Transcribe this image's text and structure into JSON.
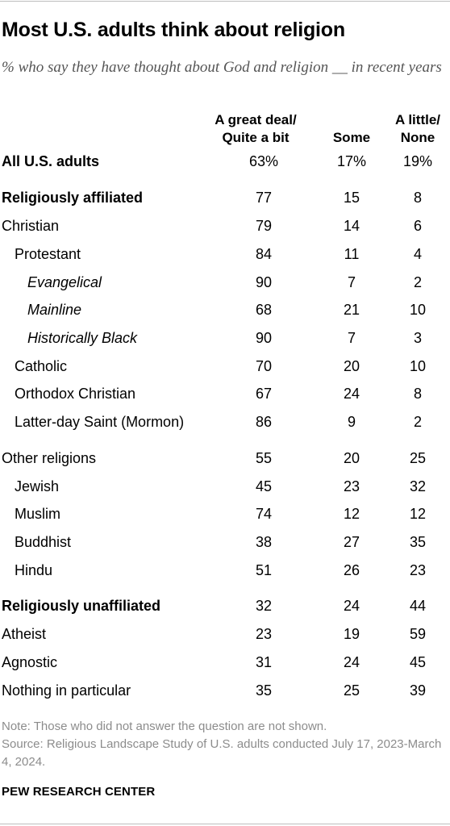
{
  "chart_data": {
    "type": "table",
    "title": "Most U.S. adults think about religion",
    "subtitle": "% who say they have thought about God and religion __ in recent years",
    "columns": [
      {
        "lines": [
          "A great deal/",
          "Quite a bit"
        ]
      },
      {
        "lines": [
          "Some"
        ]
      },
      {
        "lines": [
          "A little/",
          "None"
        ]
      }
    ],
    "rows": [
      {
        "label": "All U.S. adults",
        "values": [
          "63%",
          "17%",
          "19%"
        ],
        "bold": true,
        "italic": false,
        "indent": 0
      },
      {
        "label": "Religiously affiliated",
        "values": [
          "77",
          "15",
          "8"
        ],
        "bold": true,
        "italic": false,
        "indent": 0
      },
      {
        "label": "Christian",
        "values": [
          "79",
          "14",
          "6"
        ],
        "bold": false,
        "italic": false,
        "indent": 0
      },
      {
        "label": "Protestant",
        "values": [
          "84",
          "11",
          "4"
        ],
        "bold": false,
        "italic": false,
        "indent": 1
      },
      {
        "label": "Evangelical",
        "values": [
          "90",
          "7",
          "2"
        ],
        "bold": false,
        "italic": true,
        "indent": 2
      },
      {
        "label": "Mainline",
        "values": [
          "68",
          "21",
          "10"
        ],
        "bold": false,
        "italic": true,
        "indent": 2
      },
      {
        "label": "Historically Black",
        "values": [
          "90",
          "7",
          "3"
        ],
        "bold": false,
        "italic": true,
        "indent": 2
      },
      {
        "label": "Catholic",
        "values": [
          "70",
          "20",
          "10"
        ],
        "bold": false,
        "italic": false,
        "indent": 1
      },
      {
        "label": "Orthodox Christian",
        "values": [
          "67",
          "24",
          "8"
        ],
        "bold": false,
        "italic": false,
        "indent": 1
      },
      {
        "label": "Latter-day Saint (Mormon)",
        "values": [
          "86",
          "9",
          "2"
        ],
        "bold": false,
        "italic": false,
        "indent": 1
      },
      {
        "label": "Other religions",
        "values": [
          "55",
          "20",
          "25"
        ],
        "bold": false,
        "italic": false,
        "indent": 0
      },
      {
        "label": "Jewish",
        "values": [
          "45",
          "23",
          "32"
        ],
        "bold": false,
        "italic": false,
        "indent": 1
      },
      {
        "label": "Muslim",
        "values": [
          "74",
          "12",
          "12"
        ],
        "bold": false,
        "italic": false,
        "indent": 1
      },
      {
        "label": "Buddhist",
        "values": [
          "38",
          "27",
          "35"
        ],
        "bold": false,
        "italic": false,
        "indent": 1
      },
      {
        "label": "Hindu",
        "values": [
          "51",
          "26",
          "23"
        ],
        "bold": false,
        "italic": false,
        "indent": 1
      },
      {
        "label": "Religiously unaffiliated",
        "values": [
          "32",
          "24",
          "44"
        ],
        "bold": true,
        "italic": false,
        "indent": 0
      },
      {
        "label": "Atheist",
        "values": [
          "23",
          "19",
          "59"
        ],
        "bold": false,
        "italic": false,
        "indent": 0
      },
      {
        "label": "Agnostic",
        "values": [
          "31",
          "24",
          "45"
        ],
        "bold": false,
        "italic": false,
        "indent": 0
      },
      {
        "label": "Nothing in particular",
        "values": [
          "35",
          "25",
          "39"
        ],
        "bold": false,
        "italic": false,
        "indent": 0
      }
    ]
  },
  "footer": {
    "note": "Note: Those who did not answer the question are not shown.",
    "source": "Source: Religious Landscape Study of U.S. adults conducted July 17, 2023-March 4, 2024.",
    "brand": "PEW RESEARCH CENTER"
  },
  "colors": {
    "text": "#000000",
    "subtitle": "#555555",
    "note": "#8c8c8c",
    "rule": "#bdbdbd"
  }
}
